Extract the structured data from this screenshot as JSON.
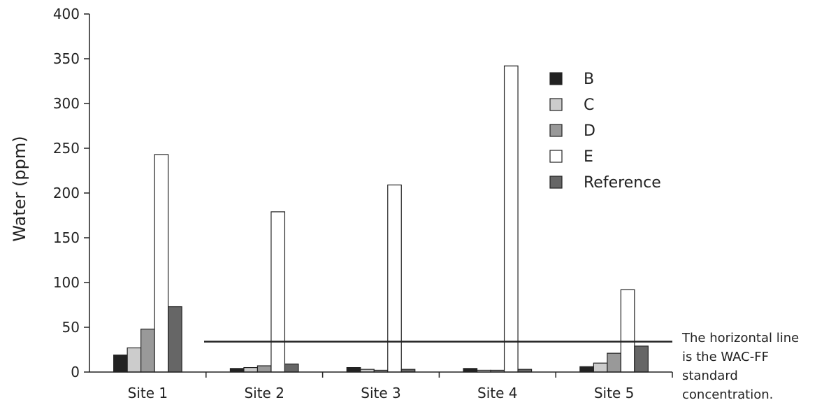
{
  "chart_data": {
    "type": "bar",
    "title": "",
    "xlabel": "",
    "ylabel": "Water (ppm)",
    "ylim": [
      0,
      400
    ],
    "yticks": [
      0,
      50,
      100,
      150,
      200,
      250,
      300,
      350,
      400
    ],
    "grid": false,
    "legend_position": "right",
    "categories": [
      "Site 1",
      "Site 2",
      "Site 3",
      "Site 4",
      "Site 5"
    ],
    "series": [
      {
        "name": "B",
        "color": "#222222",
        "values": [
          19,
          4,
          5,
          4,
          6
        ]
      },
      {
        "name": "C",
        "color": "#cccccc",
        "values": [
          27,
          5,
          3,
          2,
          10
        ]
      },
      {
        "name": "D",
        "color": "#999999",
        "values": [
          48,
          7,
          2,
          2,
          21
        ]
      },
      {
        "name": "E",
        "color": "#ffffff",
        "values": [
          243,
          179,
          209,
          342,
          92
        ]
      },
      {
        "name": "Reference",
        "color": "#666666",
        "values": [
          73,
          9,
          3,
          3,
          29
        ]
      }
    ],
    "reference_line": {
      "value": 34
    }
  },
  "note": {
    "lines": [
      "The horizontal line",
      "is the  WAC-FF",
      "standard",
      "concentration."
    ]
  }
}
